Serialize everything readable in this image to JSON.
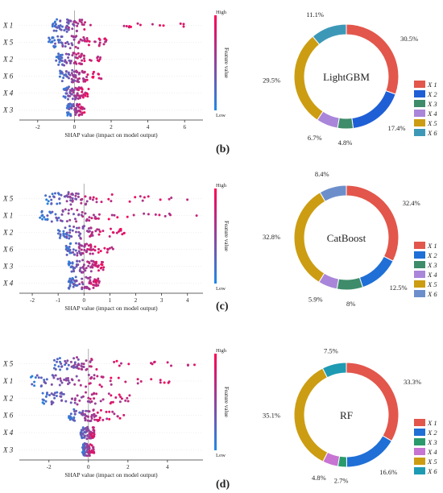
{
  "charts": [
    {
      "label": "",
      "shap": {
        "xlabel": "SHAP value (impact on model output)",
        "colorbar": {
          "label": "Feature value",
          "high": "High",
          "low": "Low"
        },
        "xticks": [
          -2,
          0,
          2,
          4,
          6
        ],
        "xlim": [
          -3,
          7
        ],
        "features": [
          "X 1",
          "X 5",
          "X 2",
          "X 6",
          "X 4",
          "X 3"
        ]
      },
      "donut": {
        "title": "LightGBM",
        "slices": [
          {
            "name": "X 1",
            "value": 30.5,
            "label": "30.5%",
            "color": "#e2564b"
          },
          {
            "name": "X 2",
            "value": 17.4,
            "label": "17.4%",
            "color": "#1f5fd6"
          },
          {
            "name": "X 3",
            "value": 4.8,
            "label": "4.8%",
            "color": "#3e8c6a"
          },
          {
            "name": "X 4",
            "value": 6.7,
            "label": "6.7%",
            "color": "#a986d9"
          },
          {
            "name": "X 5",
            "value": 29.5,
            "label": "29.5%",
            "color": "#cc9d12"
          },
          {
            "name": "X 6",
            "value": 11.1,
            "label": "11.1%",
            "color": "#3d98b8"
          }
        ]
      }
    },
    {
      "label": "(b)",
      "shap": {
        "xlabel": "SHAP value (impact on model output)",
        "colorbar": {
          "label": "Feature value",
          "high": "High",
          "low": "Low"
        },
        "xticks": [
          -2,
          -1,
          0,
          1,
          2,
          3,
          4
        ],
        "xlim": [
          -2.5,
          4.6
        ],
        "features": [
          "X 5",
          "X 1",
          "X 2",
          "X 6",
          "X 3",
          "X 4"
        ]
      },
      "donut": {
        "title": "CatBoost",
        "slices": [
          {
            "name": "X 1",
            "value": 32.4,
            "label": "32.4%",
            "color": "#e2564b"
          },
          {
            "name": "X 2",
            "value": 12.5,
            "label": "12.5%",
            "color": "#1f6fd6"
          },
          {
            "name": "X 3",
            "value": 8,
            "label": "8%",
            "color": "#3e8c6a"
          },
          {
            "name": "X 4",
            "value": 5.9,
            "label": "5.9%",
            "color": "#a986d9"
          },
          {
            "name": "X 5",
            "value": 32.8,
            "label": "32.8%",
            "color": "#cc9d12"
          },
          {
            "name": "X 6",
            "value": 8.4,
            "label": "8.4%",
            "color": "#6c8fcc"
          }
        ]
      }
    },
    {
      "label": "(c)",
      "shap": {
        "xlabel": "SHAP value (impact on model output)",
        "colorbar": {
          "label": "Feature value",
          "high": "High",
          "low": "Low"
        },
        "xticks": [
          -2,
          0,
          2,
          4
        ],
        "xlim": [
          -3.5,
          5.8
        ],
        "features": [
          "X 5",
          "X 1",
          "X 2",
          "X 6",
          "X 4",
          "X 3"
        ]
      },
      "donut": {
        "title": "RF",
        "slices": [
          {
            "name": "X 1",
            "value": 33.3,
            "label": "33.3%",
            "color": "#e2564b"
          },
          {
            "name": "X 2",
            "value": 16.6,
            "label": "16.6%",
            "color": "#1f6fd6"
          },
          {
            "name": "X 3",
            "value": 2.7,
            "label": "2.7%",
            "color": "#2a9a6a"
          },
          {
            "name": "X 4",
            "value": 4.8,
            "label": "4.8%",
            "color": "#c774d3"
          },
          {
            "name": "X 5",
            "value": 35.1,
            "label": "35.1%",
            "color": "#cc9d12"
          },
          {
            "name": "X 6",
            "value": 7.5,
            "label": "7.5%",
            "color": "#1e9ab3"
          }
        ]
      }
    }
  ],
  "bottom_label": "(d)",
  "chart_data": [
    {
      "type": "pie",
      "title": "LightGBM",
      "categories": [
        "X 1",
        "X 2",
        "X 3",
        "X 4",
        "X 5",
        "X 6"
      ],
      "values": [
        30.5,
        17.4,
        4.8,
        6.7,
        29.5,
        11.1
      ]
    },
    {
      "type": "pie",
      "title": "CatBoost",
      "categories": [
        "X 1",
        "X 2",
        "X 3",
        "X 4",
        "X 5",
        "X 6"
      ],
      "values": [
        32.4,
        12.5,
        8,
        5.9,
        32.8,
        8.4
      ]
    },
    {
      "type": "pie",
      "title": "RF",
      "categories": [
        "X 1",
        "X 2",
        "X 3",
        "X 4",
        "X 5",
        "X 6"
      ],
      "values": [
        33.3,
        16.6,
        2.7,
        4.8,
        35.1,
        7.5
      ]
    }
  ]
}
